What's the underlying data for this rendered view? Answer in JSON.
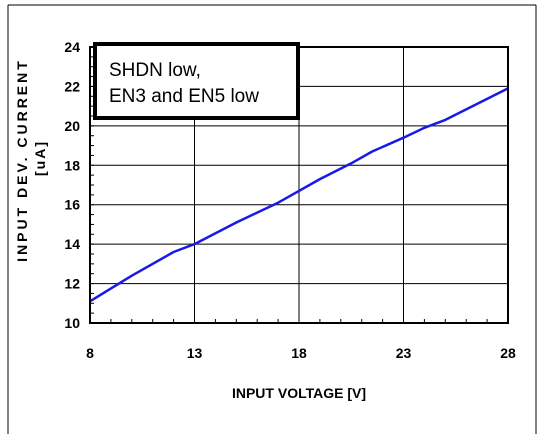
{
  "chart_data": {
    "type": "line",
    "title": "",
    "xlabel": "INPUT VOLTAGE [V]",
    "ylabel": "INPUT DEV. CURRENT",
    "ylabel_unit": "[uA]",
    "xlim": [
      8,
      28
    ],
    "ylim": [
      10,
      24
    ],
    "xticks": [
      "8",
      "13",
      "18",
      "23",
      "28"
    ],
    "yticks": [
      "10",
      "12",
      "14",
      "16",
      "18",
      "20",
      "22",
      "24"
    ],
    "grid": true,
    "annotation": [
      "SHDN low,",
      "EN3 and EN5 low"
    ],
    "series": [
      {
        "color": "#1a1ae6",
        "x": [
          8,
          10,
          12,
          13,
          15,
          17,
          19,
          20.5,
          21.5,
          23,
          24,
          25,
          28
        ],
        "y": [
          11.1,
          12.4,
          13.6,
          14.0,
          15.1,
          16.1,
          17.3,
          18.1,
          18.7,
          19.4,
          19.9,
          20.3,
          21.9
        ]
      }
    ]
  }
}
